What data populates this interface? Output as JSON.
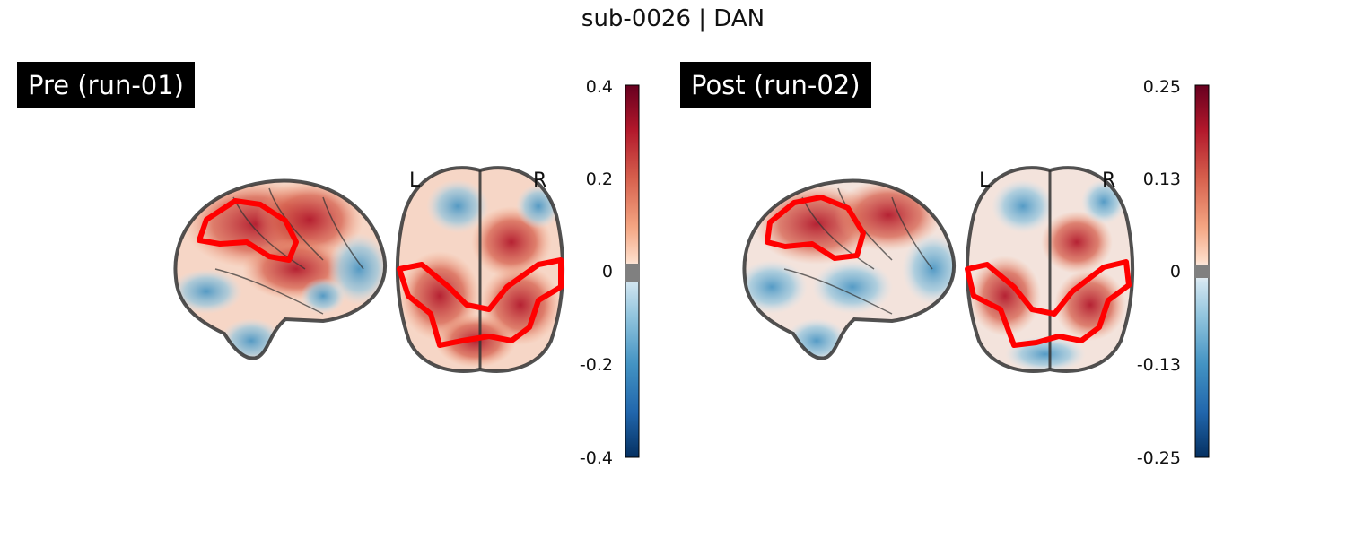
{
  "title": "sub-0026 | DAN",
  "panels": [
    {
      "label": "Pre (run-01)",
      "orientation_left": "L",
      "orientation_right": "R",
      "colorbar": {
        "colormap": "RdBu_r",
        "ticks": [
          "0.4",
          "0.2",
          "0",
          "-0.2",
          "-0.4"
        ],
        "threshold_color": "#808080"
      }
    },
    {
      "label": "Post (run-02)",
      "orientation_left": "L",
      "orientation_right": "R",
      "colorbar": {
        "colormap": "RdBu_r",
        "ticks": [
          "0.25",
          "0.13",
          "0",
          "-0.13",
          "-0.25"
        ],
        "threshold_color": "#808080"
      }
    }
  ],
  "colors": {
    "roi_outline": "#ff0000",
    "brain_outline": "#333333",
    "positive": "#b2182b",
    "negative": "#2166ac"
  }
}
